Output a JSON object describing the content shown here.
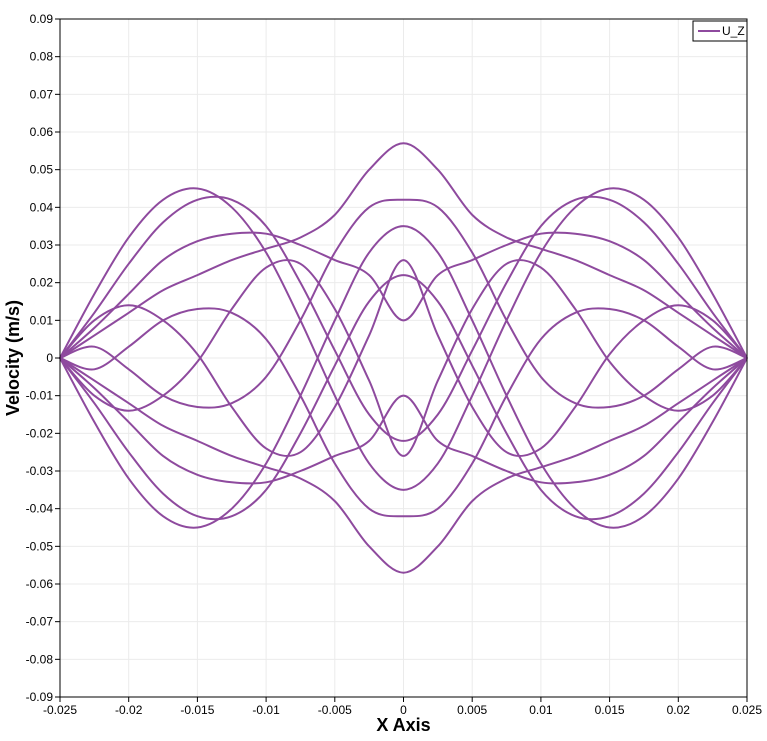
{
  "chart_data": {
    "type": "line",
    "title": "",
    "xlabel": "X Axis",
    "ylabel": "Velocity (m/s)",
    "xlim": [
      -0.025,
      0.025
    ],
    "ylim": [
      -0.09,
      0.09
    ],
    "grid": true,
    "legend_position": "top-right",
    "x_ticks": [
      -0.025,
      -0.02,
      -0.015,
      -0.01,
      -0.005,
      0,
      0.005,
      0.01,
      0.015,
      0.02,
      0.025
    ],
    "x_tick_labels": [
      "-0.025",
      "-0.02",
      "-0.015",
      "-0.01",
      "-0.005",
      "0",
      "0.005",
      "0.01",
      "0.015",
      "0.02",
      "0.025"
    ],
    "y_ticks": [
      0.09,
      0.08,
      0.07,
      0.06,
      0.05,
      0.04,
      0.03,
      0.02,
      0.01,
      0,
      -0.01,
      -0.02,
      -0.03,
      -0.04,
      -0.05,
      -0.06,
      -0.07,
      -0.08,
      -0.09
    ],
    "y_tick_labels": [
      "0.09",
      "0.08",
      "0.07",
      "0.06",
      "0.05",
      "0.04",
      "0.03",
      "0.02",
      "0.01",
      "0",
      "-0.01",
      "-0.02",
      "-0.03",
      "-0.04",
      "-0.05",
      "-0.06",
      "-0.07",
      "-0.08",
      "-0.09"
    ],
    "legend": [
      {
        "label": "U_Z",
        "color": "#8e4a9e"
      }
    ],
    "series_color": "#8e4a9e",
    "x": [
      -0.025,
      -0.0225,
      -0.02,
      -0.0175,
      -0.015,
      -0.0125,
      -0.01,
      -0.0075,
      -0.005,
      -0.0025,
      0,
      0.0025,
      0.005,
      0.0075,
      0.01,
      0.0125,
      0.015,
      0.0175,
      0.02,
      0.0225,
      0.025
    ],
    "series": [
      {
        "values": [
          0,
          0.017,
          0.032,
          0.042,
          0.045,
          0.04,
          0.028,
          0.01,
          -0.01,
          -0.028,
          -0.035,
          -0.028,
          -0.01,
          0.01,
          0.028,
          0.04,
          0.045,
          0.042,
          0.032,
          0.017,
          0
        ]
      },
      {
        "values": [
          0,
          0.012,
          0.025,
          0.036,
          0.042,
          0.042,
          0.035,
          0.02,
          0.002,
          -0.015,
          -0.022,
          -0.015,
          0.002,
          0.02,
          0.035,
          0.042,
          0.042,
          0.036,
          0.025,
          0.012,
          0
        ]
      },
      {
        "values": [
          0,
          0.008,
          0.017,
          0.026,
          0.031,
          0.033,
          0.033,
          0.03,
          0.026,
          0.022,
          0.01,
          0.022,
          0.026,
          0.03,
          0.033,
          0.033,
          0.031,
          0.026,
          0.017,
          0.008,
          0
        ]
      },
      {
        "values": [
          0,
          0.01,
          0.014,
          0.01,
          0.001,
          -0.013,
          -0.024,
          -0.025,
          -0.013,
          0.006,
          0.026,
          0.006,
          -0.013,
          -0.025,
          -0.024,
          -0.013,
          0.001,
          0.01,
          0.014,
          0.01,
          0
        ]
      },
      {
        "values": [
          0,
          0.003,
          -0.003,
          -0.01,
          -0.013,
          -0.012,
          -0.005,
          0.01,
          0.028,
          0.04,
          0.042,
          0.04,
          0.028,
          0.01,
          -0.005,
          -0.012,
          -0.013,
          -0.01,
          -0.003,
          0.003,
          0
        ]
      },
      {
        "values": [
          0,
          -0.012,
          -0.025,
          -0.036,
          -0.042,
          -0.042,
          -0.035,
          -0.02,
          -0.002,
          0.015,
          0.022,
          0.015,
          -0.002,
          -0.02,
          -0.035,
          -0.042,
          -0.042,
          -0.036,
          -0.025,
          -0.012,
          0
        ]
      },
      {
        "values": [
          0,
          -0.017,
          -0.032,
          -0.042,
          -0.045,
          -0.04,
          -0.028,
          -0.01,
          0.01,
          0.028,
          0.035,
          0.028,
          0.01,
          -0.01,
          -0.028,
          -0.04,
          -0.045,
          -0.042,
          -0.032,
          -0.017,
          0
        ]
      },
      {
        "values": [
          0,
          -0.008,
          -0.017,
          -0.026,
          -0.031,
          -0.033,
          -0.033,
          -0.03,
          -0.026,
          -0.022,
          -0.01,
          -0.022,
          -0.026,
          -0.03,
          -0.033,
          -0.033,
          -0.031,
          -0.026,
          -0.017,
          -0.008,
          0
        ]
      },
      {
        "values": [
          0,
          -0.01,
          -0.014,
          -0.01,
          -0.001,
          0.013,
          0.024,
          0.025,
          0.013,
          -0.006,
          -0.026,
          -0.006,
          0.013,
          0.025,
          0.024,
          0.013,
          -0.001,
          -0.01,
          -0.014,
          -0.01,
          0
        ]
      },
      {
        "values": [
          0,
          -0.003,
          0.003,
          0.01,
          0.013,
          0.012,
          0.005,
          -0.01,
          -0.028,
          -0.04,
          -0.042,
          -0.04,
          -0.028,
          -0.01,
          0.005,
          0.012,
          0.013,
          0.01,
          0.003,
          -0.003,
          0
        ]
      },
      {
        "values": [
          0,
          0.006,
          0.012,
          0.018,
          0.022,
          0.026,
          0.029,
          0.032,
          0.038,
          0.05,
          0.057,
          0.05,
          0.038,
          0.032,
          0.029,
          0.026,
          0.022,
          0.018,
          0.012,
          0.006,
          0
        ]
      },
      {
        "values": [
          0,
          -0.006,
          -0.012,
          -0.018,
          -0.022,
          -0.026,
          -0.029,
          -0.032,
          -0.038,
          -0.05,
          -0.057,
          -0.05,
          -0.038,
          -0.032,
          -0.029,
          -0.026,
          -0.022,
          -0.018,
          -0.012,
          -0.006,
          0
        ]
      }
    ]
  }
}
